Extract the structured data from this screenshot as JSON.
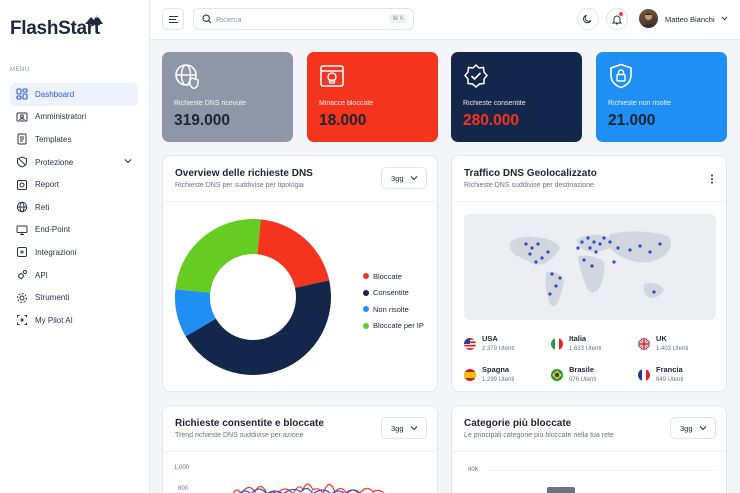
{
  "sidebar": {
    "logo": "FlashStart",
    "menu_label": "MENU",
    "items": [
      {
        "label": "Dashboard",
        "icon": "dashboard-icon",
        "active": true
      },
      {
        "label": "Amministratori",
        "icon": "admin-id-icon"
      },
      {
        "label": "Templates",
        "icon": "template-icon"
      },
      {
        "label": "Protezione",
        "icon": "shield-icon",
        "has_submenu": true
      },
      {
        "label": "Report",
        "icon": "report-icon"
      },
      {
        "label": "Reti",
        "icon": "network-globe-icon"
      },
      {
        "label": "End-Point",
        "icon": "endpoint-icon"
      },
      {
        "label": "Integrazioni",
        "icon": "integration-icon"
      },
      {
        "label": "API",
        "icon": "api-gear-icon"
      },
      {
        "label": "Strumenti",
        "icon": "tools-gear-icon"
      },
      {
        "label": "My Pilot AI",
        "icon": "ai-icon"
      }
    ]
  },
  "topbar": {
    "search_placeholder": "Ricerca",
    "search_shortcut": "⌘ K",
    "user_name": "Matteo Bianchi"
  },
  "stats": [
    {
      "label": "Richieste DNS ricevute",
      "value": "319.000",
      "icon": "globe-shield-icon",
      "bg": "#8e97a8",
      "value_color": "#1c2533",
      "label_color": "#ffffff"
    },
    {
      "label": "Minacce bloccate",
      "value": "18.000",
      "icon": "skull-browser-icon",
      "bg": "#f5341e",
      "value_color": "#1c2533",
      "label_color": "#ffffff"
    },
    {
      "label": "Richieste consentite",
      "value": "280.000",
      "icon": "verified-badge-icon",
      "bg": "#14264a",
      "value_color": "#f5341e",
      "label_color": "#ffffff"
    },
    {
      "label": "Richieste non risolte",
      "value": "21.000",
      "icon": "lock-shield-icon",
      "bg": "#1f8ef5",
      "value_color": "#1c2533",
      "label_color": "#ffffff"
    }
  ],
  "overview": {
    "title": "Overview delle richieste DNS",
    "subtitle": "Richieste DNS per suddivise per tipologia",
    "period": "3gg",
    "legend": [
      {
        "label": "Bloccate",
        "color": "#f5341e"
      },
      {
        "label": "Consentite",
        "color": "#14264a"
      },
      {
        "label": "Non risolte",
        "color": "#1f8ef5"
      },
      {
        "label": "Bloccate per IP",
        "color": "#66cc22"
      }
    ]
  },
  "geo": {
    "title": "Traffico DNS Geolocalizzato",
    "subtitle": "Richieste DNS suddivise per destinazione",
    "countries": [
      {
        "name": "USA",
        "value": "2.379 Utenti",
        "flag": "us-flag-icon"
      },
      {
        "name": "Italia",
        "value": "1.623 Utenti",
        "flag": "it-flag-icon"
      },
      {
        "name": "UK",
        "value": "1.403 Utenti",
        "flag": "uk-flag-icon"
      },
      {
        "name": "Spagna",
        "value": "1.299 Utenti",
        "flag": "es-flag-icon"
      },
      {
        "name": "Brasile",
        "value": "976 Utenti",
        "flag": "br-flag-icon"
      },
      {
        "name": "Francia",
        "value": "849 Utenti",
        "flag": "fr-flag-icon"
      }
    ]
  },
  "trend": {
    "title": "Richieste consentite e bloccate",
    "subtitle": "Trend richieste DNS suddivise per azione",
    "period": "3gg",
    "yticks": [
      "1,000",
      "800"
    ]
  },
  "categories": {
    "title": "Categorie più bloccate",
    "subtitle": "Le principali categorie più bloccate nella tua rete",
    "period": "3gg",
    "yticks": [
      "80K"
    ]
  },
  "chart_data": [
    {
      "type": "pie",
      "categories": [
        "Bloccate",
        "Consentite",
        "Non risolte",
        "Bloccate per IP"
      ],
      "values": [
        20,
        45,
        10,
        25
      ],
      "colors": [
        "#f5341e",
        "#14264a",
        "#1f8ef5",
        "#66cc22"
      ]
    }
  ]
}
